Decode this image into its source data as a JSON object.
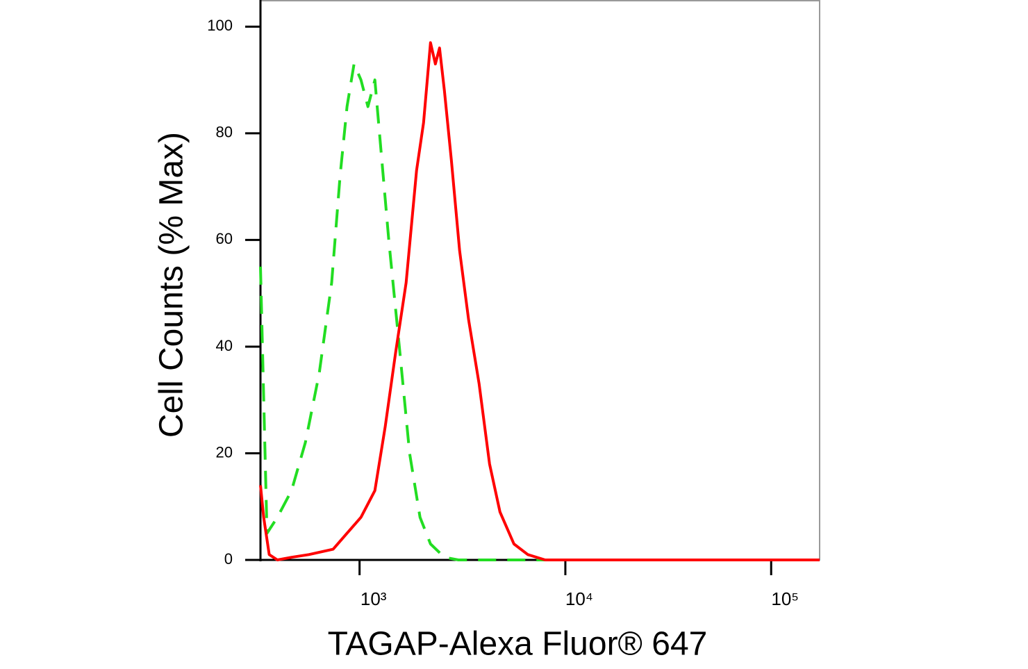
{
  "chart_data": {
    "type": "line",
    "xlabel": "TAGAP-Alexa Fluor® 647",
    "ylabel": "Cell Counts (% Max)",
    "xscale": "log",
    "xlim": [
      330,
      172000
    ],
    "ylim": [
      0,
      105
    ],
    "xticks": [
      {
        "value": 1000,
        "label": "10³"
      },
      {
        "value": 10000,
        "label": "10⁴"
      },
      {
        "value": 100000,
        "label": "10⁵"
      }
    ],
    "yticks": [
      0,
      20,
      40,
      60,
      80,
      100
    ],
    "series": [
      {
        "color": "#ff0000",
        "dash": "solid",
        "x": [
          330,
          342,
          364,
          399,
          467,
          567,
          744,
          869,
          1016,
          1187,
          1333,
          1499,
          1684,
          1892,
          2046,
          2212,
          2335,
          2447,
          2583,
          2792,
          3064,
          3389,
          3811,
          4283,
          4813,
          5623,
          6571,
          7980,
          10470,
          172000
        ],
        "values": [
          14,
          8,
          1,
          0,
          0.5,
          1,
          2,
          5,
          8,
          13,
          25,
          39,
          52,
          73,
          82,
          97,
          93,
          96,
          88,
          75,
          58,
          45,
          33,
          18,
          9,
          3,
          1,
          0,
          0,
          0
        ]
      },
      {
        "color": "#22dd22",
        "dash": "dashed",
        "x": [
          330,
          355,
          399,
          467,
          545,
          637,
          732,
          804,
          869,
          940,
          1016,
          1098,
          1187,
          1283,
          1387,
          1560,
          1751,
          1967,
          2212,
          2583,
          3020,
          172000
        ],
        "values": [
          55,
          5,
          8,
          13,
          22,
          35,
          52,
          72,
          85,
          93,
          90,
          85,
          90,
          75,
          60,
          40,
          20,
          8,
          3,
          0.5,
          0,
          0
        ]
      }
    ]
  }
}
